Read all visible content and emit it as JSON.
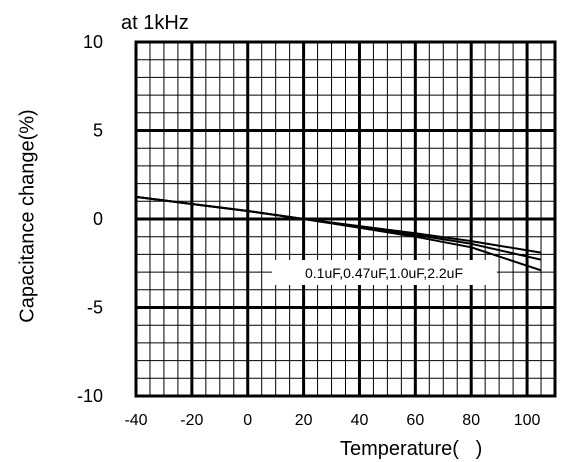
{
  "chart_data": {
    "type": "line",
    "title": "at 1kHz",
    "xlabel": "Temperature(   )",
    "ylabel": "Capacitance change(%)",
    "xlim": [
      -40,
      105
    ],
    "ylim": [
      -10,
      10
    ],
    "x_ticks": [
      -40,
      -20,
      0,
      20,
      40,
      60,
      80,
      100
    ],
    "y_ticks": [
      10,
      5,
      0,
      -5,
      -10
    ],
    "grid": true,
    "annotation": "0.1uF,0.47uF,1.0uF,2.2uF",
    "series": [
      {
        "x": [
          -40,
          -20,
          0,
          20,
          40,
          60,
          80,
          105
        ],
        "y": [
          1.25,
          0.85,
          0.45,
          0.0,
          -0.4,
          -0.8,
          -1.25,
          -1.9
        ]
      },
      {
        "x": [
          -40,
          -20,
          0,
          20,
          40,
          60,
          80,
          105
        ],
        "y": [
          1.25,
          0.85,
          0.45,
          0.0,
          -0.45,
          -0.9,
          -1.4,
          -2.3
        ]
      },
      {
        "x": [
          -40,
          -20,
          0,
          20,
          40,
          60,
          80,
          105
        ],
        "y": [
          1.25,
          0.85,
          0.45,
          0.0,
          -0.5,
          -1.0,
          -1.6,
          -2.9
        ]
      }
    ]
  }
}
